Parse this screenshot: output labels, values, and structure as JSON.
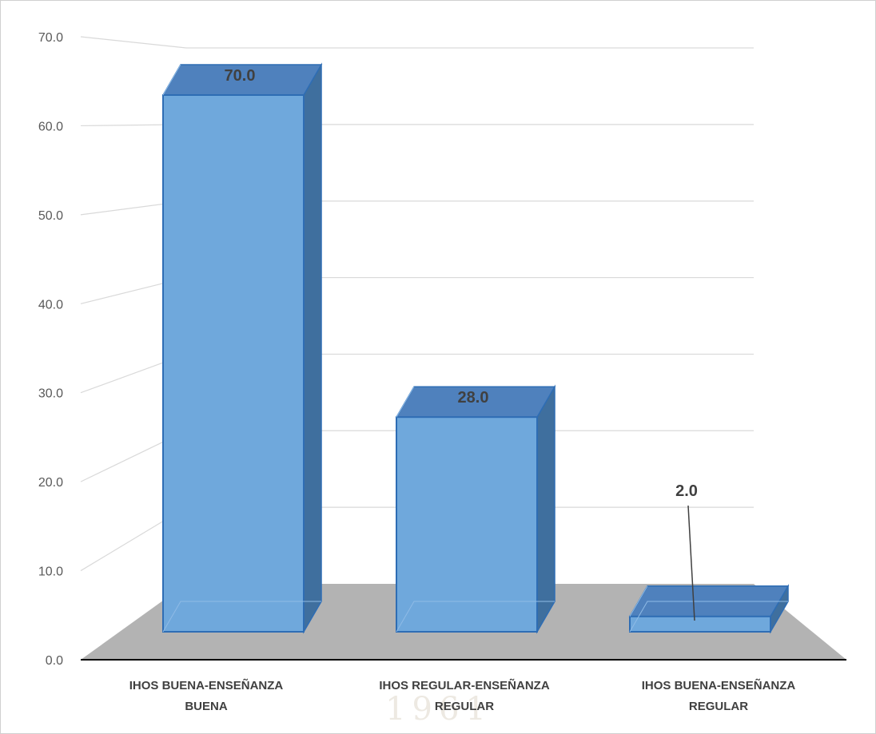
{
  "chart_data": {
    "type": "bar",
    "style": "3d-column",
    "categories": [
      [
        "IHOS BUENA-ENSEÑANZA",
        "BUENA"
      ],
      [
        "IHOS REGULAR-ENSEÑANZA",
        "REGULAR"
      ],
      [
        "IHOS BUENA-ENSEÑANZA",
        "REGULAR"
      ]
    ],
    "values": [
      70.0,
      28.0,
      2.0
    ],
    "data_labels": [
      "70.0",
      "28.0",
      "2.0"
    ],
    "ylim": [
      0,
      70
    ],
    "yticks": [
      "0.0",
      "10.0",
      "20.0",
      "30.0",
      "40.0",
      "50.0",
      "60.0",
      "70.0"
    ],
    "grid": true,
    "legend": "none",
    "colors": {
      "bar_front": "#6fa8dc",
      "bar_side": "#3f6f9e",
      "bar_top": "#4f81bd",
      "bar_edge": "#2e6db4",
      "floor": "#b3b3b3",
      "grid": "#d9d9d9",
      "axis": "#000000"
    }
  },
  "watermark_text": "1961"
}
